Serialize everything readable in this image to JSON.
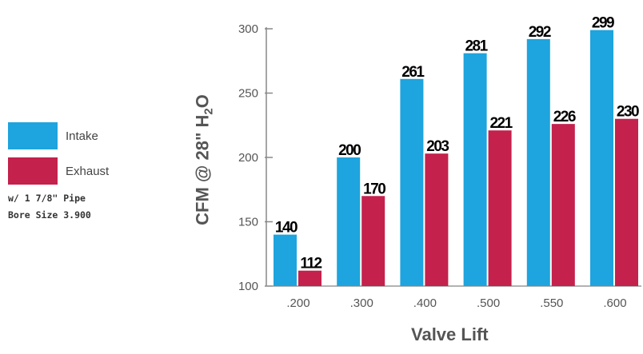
{
  "chart_data": {
    "type": "bar",
    "categories": [
      ".200",
      ".300",
      ".400",
      ".500",
      ".550",
      ".600"
    ],
    "series": [
      {
        "name": "Intake",
        "values": [
          140,
          200,
          261,
          281,
          292,
          299
        ],
        "color": "#1ea4de"
      },
      {
        "name": "Exhaust",
        "values": [
          112,
          170,
          203,
          221,
          226,
          230
        ],
        "color": "#c4214c"
      }
    ],
    "data_labels": {
      "Intake": [
        "140",
        "200",
        "261",
        "281",
        "292",
        "299"
      ],
      "Exhaust": [
        "112",
        "170",
        "203",
        "221",
        "226",
        "230"
      ]
    },
    "y_ticks": [
      "100",
      "150",
      "200",
      "250",
      "300"
    ],
    "ylim": [
      100,
      300
    ],
    "ylabel": {
      "main": "CFM @ 28\" H",
      "sub": "2",
      "end": "O"
    },
    "xlabel": "Valve Lift",
    "grid": false,
    "legend_position": "left"
  },
  "legend": {
    "items": [
      {
        "label": "Intake",
        "color": "#1ea4de"
      },
      {
        "label": "Exhaust",
        "color": "#c4214c"
      }
    ],
    "note_line1": "w/ 1 7/8\" Pipe",
    "note_line2": "Bore Size 3.900"
  }
}
